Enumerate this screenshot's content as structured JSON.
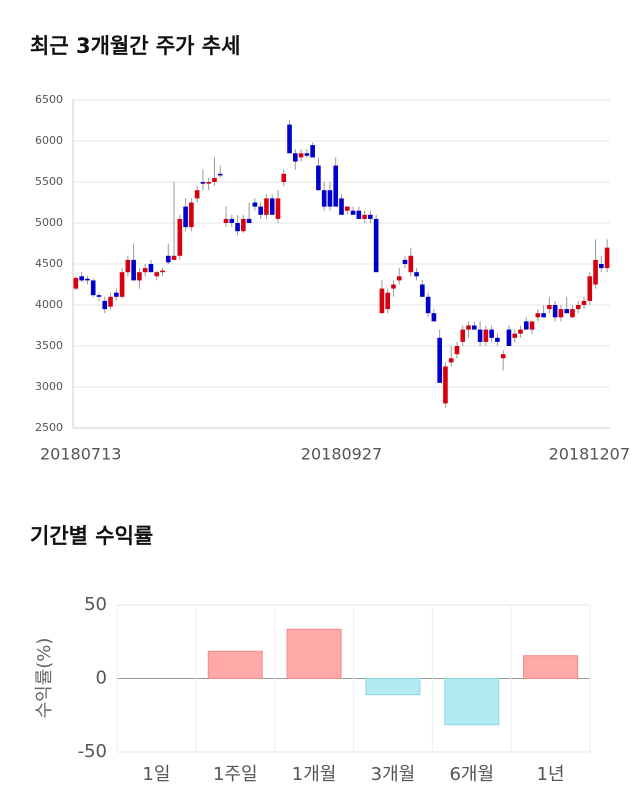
{
  "chart_data": [
    {
      "type": "candlestick",
      "title": "최근 3개월간 주가 추세",
      "categories": [
        "20180713",
        null,
        null,
        null,
        null,
        null,
        null,
        null,
        null,
        null,
        null,
        null,
        null,
        null,
        null,
        null,
        null,
        null,
        null,
        null,
        null,
        null,
        null,
        null,
        null,
        null,
        null,
        null,
        null,
        null,
        null,
        null,
        null,
        null,
        null,
        null,
        null,
        null,
        null,
        null,
        null,
        null,
        null,
        null,
        null,
        null,
        "20180927",
        null,
        null,
        null,
        null,
        null,
        null,
        null,
        null,
        null,
        null,
        null,
        null,
        null,
        null,
        null,
        null,
        null,
        null,
        null,
        null,
        null,
        null,
        null,
        null,
        null,
        null,
        null,
        null,
        null,
        null,
        null,
        null,
        null,
        null,
        null,
        null,
        null,
        null,
        null,
        null,
        null,
        null,
        null,
        null,
        null,
        "20181207"
      ],
      "open": [
        4200,
        4350,
        4320,
        4300,
        4120,
        4050,
        3980,
        4150,
        4100,
        4400,
        4550,
        4300,
        4400,
        4500,
        4350,
        4400,
        4600,
        4550,
        4600,
        5200,
        4950,
        5300,
        5500,
        5480,
        5500,
        5600,
        5000,
        5050,
        5000,
        4900,
        5050,
        5250,
        5200,
        5100,
        5300,
        5050,
        5500,
        6200,
        5850,
        5800,
        5850,
        5950,
        5700,
        5400,
        5400,
        5700,
        5300,
        5150,
        5150,
        5150,
        5050,
        5100,
        5050,
        3900,
        3950,
        4200,
        4300,
        4550,
        4400,
        4400,
        4250,
        4100,
        3900,
        3600,
        2800,
        3300,
        3400,
        3550,
        3700,
        3750,
        3700,
        3550,
        3700,
        3600,
        3350,
        3700,
        3600,
        3650,
        3800,
        3700,
        3850,
        3900,
        3950,
        4000,
        3850,
        3950,
        3850,
        3950,
        4000,
        4050,
        4250,
        4500,
        4450
      ],
      "high": [
        4350,
        4400,
        4350,
        4320,
        4150,
        4100,
        4150,
        4200,
        4450,
        4600,
        4750,
        4450,
        4500,
        4550,
        4420,
        4450,
        4750,
        5500,
        5100,
        5300,
        5300,
        5450,
        5650,
        5550,
        5800,
        5700,
        5200,
        5100,
        5100,
        5100,
        5250,
        5300,
        5250,
        5350,
        5350,
        5400,
        5650,
        6250,
        5900,
        5900,
        5900,
        5980,
        5800,
        5500,
        5500,
        5800,
        5350,
        5200,
        5200,
        5200,
        5150,
        5150,
        5100,
        4300,
        4200,
        4300,
        4450,
        4600,
        4700,
        4450,
        4300,
        4150,
        3950,
        3700,
        3300,
        3500,
        3550,
        3750,
        3800,
        3800,
        3800,
        3750,
        3750,
        3650,
        3450,
        3750,
        3700,
        3750,
        3850,
        3800,
        3950,
        4000,
        4100,
        4050,
        4000,
        4100,
        4000,
        4050,
        4100,
        4400,
        4800,
        4600,
        4800
      ],
      "low": [
        4180,
        4280,
        4250,
        4100,
        4050,
        3900,
        3950,
        4050,
        4080,
        4350,
        4300,
        4200,
        4350,
        4400,
        4300,
        4350,
        4500,
        4550,
        4550,
        4900,
        4900,
        5250,
        5400,
        5400,
        5450,
        5550,
        4950,
        4950,
        4850,
        4880,
        5000,
        5150,
        5050,
        5050,
        5100,
        5000,
        5450,
        5850,
        5650,
        5750,
        5800,
        5800,
        5400,
        5150,
        5150,
        5200,
        5100,
        5100,
        5100,
        5050,
        5000,
        5000,
        4400,
        3900,
        3900,
        4100,
        4250,
        4450,
        4350,
        4300,
        4100,
        3850,
        3800,
        3050,
        2750,
        3250,
        3350,
        3500,
        3600,
        3700,
        3500,
        3500,
        3550,
        3500,
        3200,
        3500,
        3550,
        3600,
        3700,
        3650,
        3800,
        3850,
        3900,
        3800,
        3800,
        3900,
        3850,
        3900,
        3950,
        4000,
        4200,
        4400,
        4400
      ],
      "close": [
        4330,
        4300,
        4300,
        4120,
        4100,
        3950,
        4100,
        4100,
        4400,
        4550,
        4300,
        4400,
        4450,
        4400,
        4400,
        4420,
        4520,
        4600,
        5050,
        4950,
        5250,
        5400,
        5480,
        5500,
        5550,
        5580,
        5050,
        5000,
        4900,
        5050,
        5000,
        5200,
        5100,
        5300,
        5100,
        5300,
        5600,
        5850,
        5750,
        5850,
        5820,
        5800,
        5400,
        5200,
        5200,
        5200,
        5100,
        5200,
        5100,
        5050,
        5100,
        5050,
        4400,
        4200,
        4150,
        4250,
        4350,
        4500,
        4600,
        4350,
        4100,
        3900,
        3800,
        3050,
        3250,
        3350,
        3500,
        3700,
        3750,
        3700,
        3550,
        3700,
        3600,
        3550,
        3400,
        3500,
        3650,
        3700,
        3700,
        3800,
        3900,
        3850,
        4000,
        3850,
        3950,
        3900,
        3950,
        4000,
        4050,
        4350,
        4550,
        4450,
        4700
      ],
      "up_color": "#d7000f",
      "down_color": "#0000cc",
      "ylim": [
        2500,
        6500
      ],
      "yticks": [
        2500,
        3000,
        3500,
        4000,
        4500,
        5000,
        5500,
        6000,
        6500
      ],
      "grid": true
    },
    {
      "type": "bar",
      "title": "기간별 수익률",
      "ylabel": "수익률(%)",
      "categories": [
        "1일",
        "1주일",
        "1개월",
        "3개월",
        "6개월",
        "1년"
      ],
      "values": [
        0,
        18.5,
        33.5,
        -11,
        -31.5,
        15.5
      ],
      "positive_color": "#ffa8a8",
      "negative_color": "#b2ebf2",
      "ylim": [
        -50,
        50
      ],
      "yticks": [
        -50,
        0,
        50
      ],
      "grid": true
    }
  ]
}
